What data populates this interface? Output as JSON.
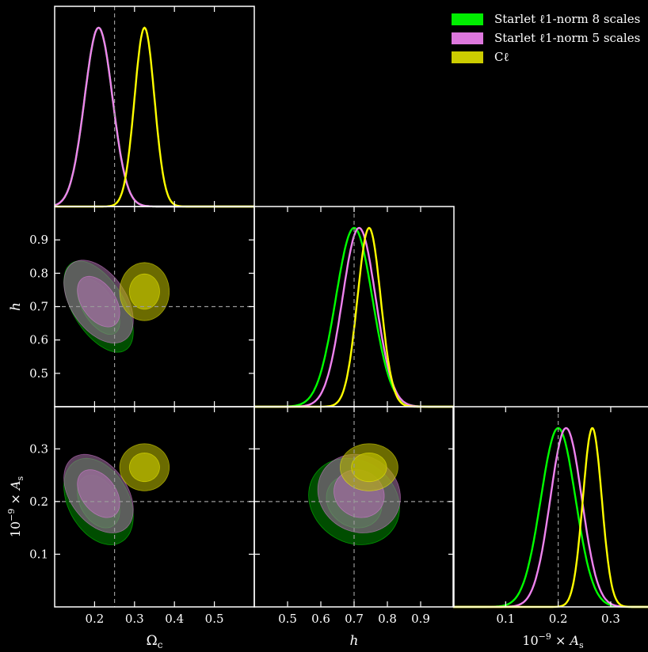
{
  "chart_data": {
    "type": "corner",
    "parameters": [
      {
        "key": "omega_c",
        "label": "Ωc",
        "range": [
          0.1,
          0.6
        ],
        "ticks": [
          0.2,
          0.3,
          0.4,
          0.5
        ],
        "tick_labels": [
          "0.2",
          "0.3",
          "0.4",
          "0.5"
        ],
        "truth": 0.25
      },
      {
        "key": "h",
        "label": "h",
        "range": [
          0.4,
          1.0
        ],
        "ticks": [
          0.5,
          0.6,
          0.7,
          0.8,
          0.9
        ],
        "tick_labels": [
          "0.5",
          "0.6",
          "0.7",
          "0.8",
          "0.9"
        ],
        "truth": 0.7
      },
      {
        "key": "As",
        "label": "10⁻⁹ × As",
        "range": [
          0.0,
          0.38
        ],
        "ticks": [
          0.1,
          0.2,
          0.3
        ],
        "tick_labels": [
          "0.1",
          "0.2",
          "0.3"
        ],
        "truth": 0.2
      }
    ],
    "series": [
      {
        "name": "Starlet ℓ1-norm 8 scales",
        "color": "#00ff00",
        "fill": "#008000",
        "mean": [
          0.21,
          0.7,
          0.2
        ],
        "sigma": [
          0.035,
          0.055,
          0.033
        ],
        "corr": {
          "omega_c-h": -0.55,
          "omega_c-As": -0.35,
          "h-As": -0.15
        }
      },
      {
        "name": "Starlet ℓ1-norm 5 scales",
        "color": "#ee82ee",
        "fill": "#9a6a9a",
        "mean": [
          0.21,
          0.715,
          0.215
        ],
        "sigma": [
          0.035,
          0.05,
          0.03
        ],
        "corr": {
          "omega_c-h": -0.45,
          "omega_c-As": -0.4,
          "h-As": -0.1
        }
      },
      {
        "name": "Cℓ",
        "color": "#ffff00",
        "fill": "#b3b300",
        "mean": [
          0.325,
          0.745,
          0.265
        ],
        "sigma": [
          0.025,
          0.035,
          0.018
        ],
        "corr": {
          "omega_c-h": 0.0,
          "omega_c-As": 0.0,
          "h-As": 0.0
        }
      }
    ],
    "legend_position": "top-right"
  }
}
